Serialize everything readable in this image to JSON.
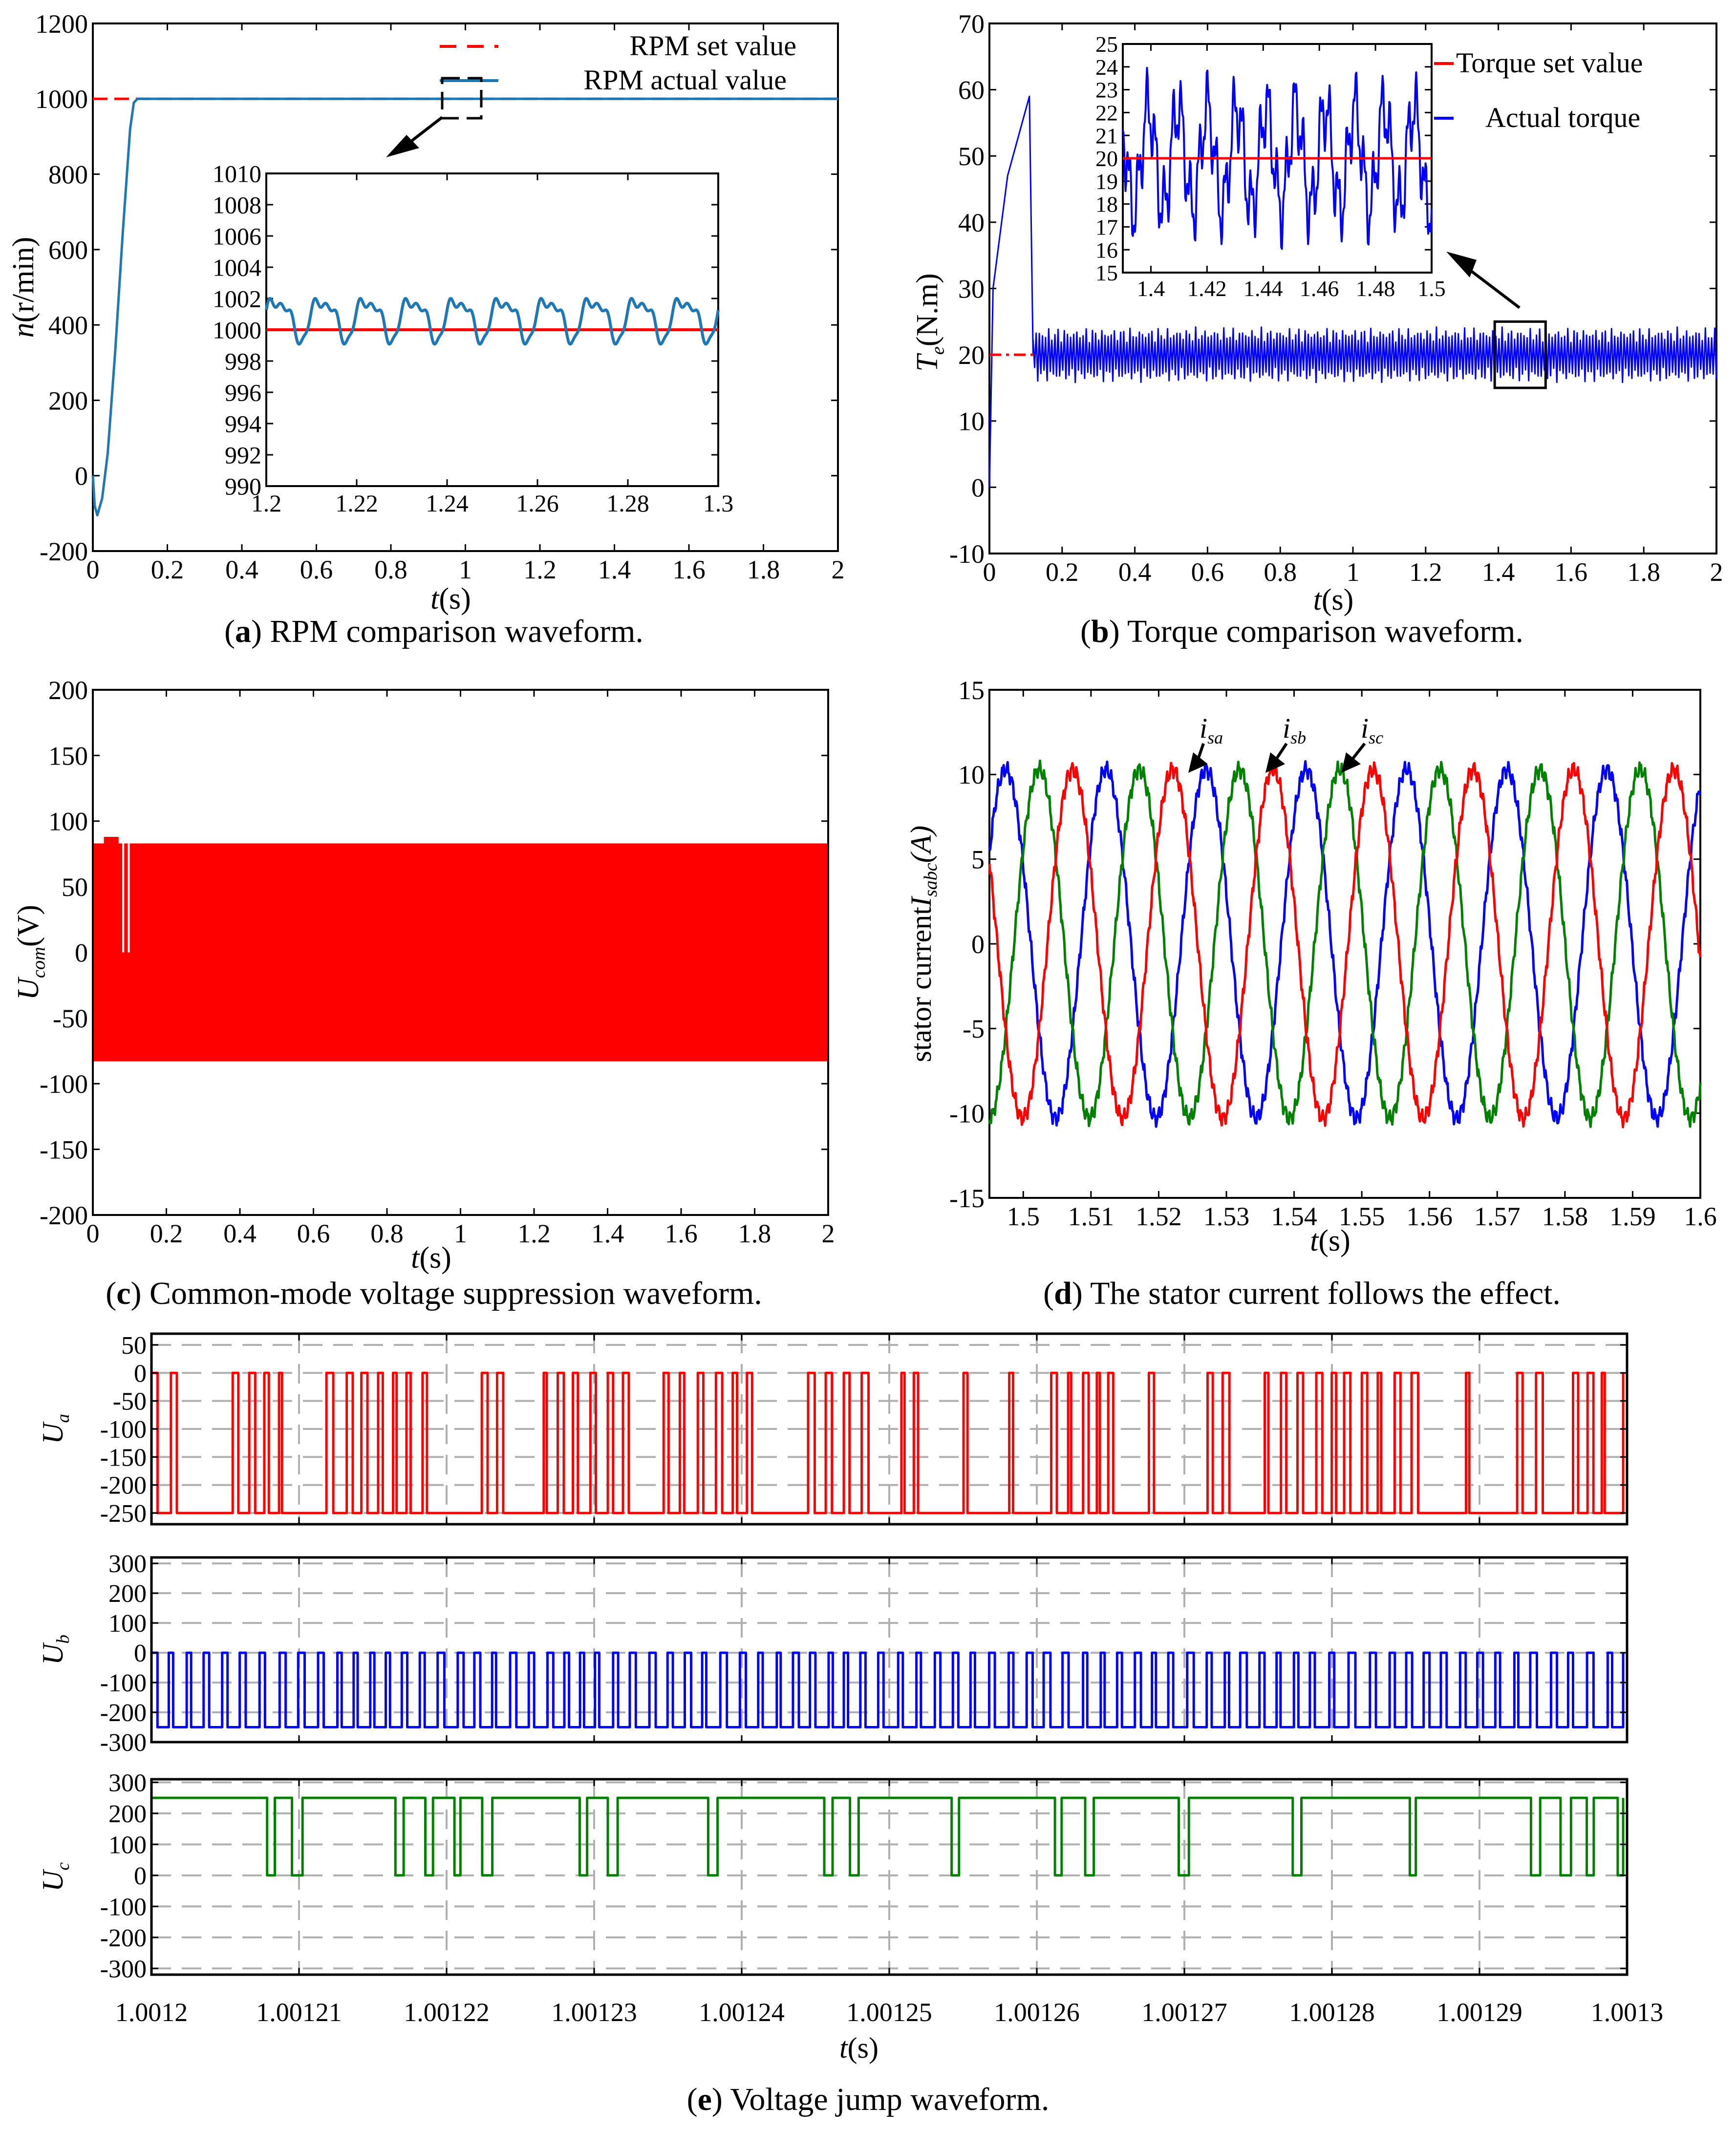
{
  "captions": {
    "a": {
      "letter": "a",
      "text": " RPM comparison waveform."
    },
    "b": {
      "letter": "b",
      "text": " Torque comparison waveform."
    },
    "c": {
      "letter": "c",
      "text": " Common-mode voltage suppression waveform."
    },
    "d": {
      "letter": "d",
      "text": " The stator current follows the effect."
    },
    "e": {
      "letter": "e",
      "text": " Voltage jump waveform."
    }
  },
  "chart_data": [
    {
      "id": "a",
      "type": "line",
      "ylabel": "n(r/min)",
      "xlabel": "t(s)",
      "xlim": [
        0,
        2
      ],
      "ylim": [
        -200,
        1200
      ],
      "xticks": [
        0,
        0.2,
        0.4,
        0.6,
        0.8,
        1,
        1.2,
        1.4,
        1.6,
        1.8,
        2
      ],
      "yticks": [
        -200,
        0,
        200,
        400,
        600,
        800,
        1000,
        1200
      ],
      "legend": {
        "position": "top-right",
        "entries": [
          "RPM set value",
          "RPM actual value"
        ]
      },
      "series": [
        {
          "name": "RPM set value",
          "color": "#ff0000",
          "style": "dashed",
          "x": [
            0,
            2
          ],
          "y": [
            1000,
            1000
          ]
        },
        {
          "name": "RPM actual value",
          "color": "#1f77b4",
          "x": [
            0,
            0.005,
            0.012,
            0.025,
            0.04,
            0.06,
            0.08,
            0.1,
            0.11,
            0.12,
            0.13,
            2
          ],
          "y": [
            0,
            -80,
            -105,
            -60,
            60,
            330,
            640,
            920,
            990,
            1000,
            1000,
            1000
          ]
        }
      ],
      "inset": {
        "xlim": [
          1.2,
          1.3
        ],
        "ylim": [
          990,
          1010
        ],
        "xticks": [
          1.2,
          1.22,
          1.24,
          1.26,
          1.28,
          1.3
        ],
        "yticks": [
          990,
          992,
          994,
          996,
          998,
          1000,
          1002,
          1004,
          1006,
          1008,
          1010
        ],
        "set_value": 1000,
        "ripple": {
          "mean": 1000.8,
          "amplitude": 1.2,
          "period": 0.01
        }
      }
    },
    {
      "id": "b",
      "type": "line",
      "ylabel": "Te(N.m)",
      "xlabel": "t(s)",
      "xlim": [
        0,
        2
      ],
      "ylim": [
        -10,
        70
      ],
      "xticks": [
        0,
        0.2,
        0.4,
        0.6,
        0.8,
        1,
        1.2,
        1.4,
        1.6,
        1.8,
        2
      ],
      "yticks": [
        -10,
        0,
        10,
        20,
        30,
        40,
        50,
        60,
        70
      ],
      "legend": {
        "position": "top-right",
        "entries": [
          "Torque set value",
          "Actual torque"
        ]
      },
      "series": [
        {
          "name": "Torque set value",
          "color": "#ff0000",
          "style": "dashdot",
          "x": [
            0,
            2
          ],
          "y": [
            20,
            20
          ]
        },
        {
          "name": "Actual torque",
          "color": "#0000ff",
          "startup": {
            "x": [
              0,
              0.01,
              0.05,
              0.11,
              0.12
            ],
            "y": [
              0,
              30,
              47,
              59,
              20
            ]
          },
          "ripple_band": [
            16,
            24
          ]
        }
      ],
      "inset": {
        "xlim": [
          1.39,
          1.5
        ],
        "ylim": [
          15,
          25
        ],
        "xticks": [
          1.4,
          1.42,
          1.44,
          1.46,
          1.48,
          1.5
        ],
        "yticks": [
          15,
          16,
          17,
          18,
          19,
          20,
          21,
          22,
          23,
          24,
          25
        ],
        "set_value": 20
      }
    },
    {
      "id": "c",
      "type": "area",
      "ylabel": "Ucom(V)",
      "xlabel": "t(s)",
      "xlim": [
        0,
        2
      ],
      "ylim": [
        -200,
        200
      ],
      "xticks": [
        0,
        0.2,
        0.4,
        0.6,
        0.8,
        1,
        1.2,
        1.4,
        1.6,
        1.8,
        2
      ],
      "yticks": [
        -200,
        -150,
        -100,
        -50,
        0,
        50,
        100,
        150,
        200
      ],
      "series": [
        {
          "color": "#ff0000",
          "band": [
            -83,
            83
          ]
        }
      ]
    },
    {
      "id": "d",
      "type": "line",
      "ylabel": "stator currentIsabc(A)",
      "xlabel": "t(s)",
      "xlim": [
        1.495,
        1.6
      ],
      "ylim": [
        -15,
        15
      ],
      "xticks": [
        1.5,
        1.51,
        1.52,
        1.53,
        1.54,
        1.55,
        1.56,
        1.57,
        1.58,
        1.59,
        1.6
      ],
      "yticks": [
        -15,
        -10,
        -5,
        0,
        5,
        10,
        15
      ],
      "annotations": [
        "isa",
        "isb",
        "isc"
      ],
      "series": [
        {
          "name": "isa",
          "color": "#0000ff",
          "amplitude": 10.3,
          "period": 0.0148
        },
        {
          "name": "isb",
          "color": "#008000",
          "amplitude": 10.3,
          "period": 0.0148
        },
        {
          "name": "isc",
          "color": "#ff0000",
          "amplitude": 10.3,
          "period": 0.0148
        }
      ]
    },
    {
      "id": "e",
      "type": "line",
      "xlabel": "t(s)",
      "xlim": [
        1.0012,
        1.0013
      ],
      "xticks": [
        "1.0012",
        "1.00121",
        "1.00122",
        "1.00123",
        "1.00124",
        "1.00125",
        "1.00126",
        "1.00127",
        "1.00128",
        "1.00129",
        "1.0013"
      ],
      "grid": true,
      "subplots": [
        {
          "ylabel": "Ua",
          "color": "#ff0000",
          "ylim": [
            -270,
            70
          ],
          "yticks": [
            -250,
            -200,
            -150,
            -100,
            -50,
            0,
            50
          ],
          "levels": [
            0,
            -250
          ]
        },
        {
          "ylabel": "Ub",
          "color": "#0000ff",
          "ylim": [
            -300,
            320
          ],
          "yticks": [
            -300,
            -200,
            -100,
            0,
            100,
            200,
            300
          ],
          "levels": [
            0,
            -250
          ]
        },
        {
          "ylabel": "Uc",
          "color": "#008000",
          "ylim": [
            -320,
            310
          ],
          "yticks": [
            -300,
            -200,
            -100,
            0,
            100,
            200,
            300
          ],
          "levels": [
            250,
            0
          ]
        }
      ]
    }
  ]
}
